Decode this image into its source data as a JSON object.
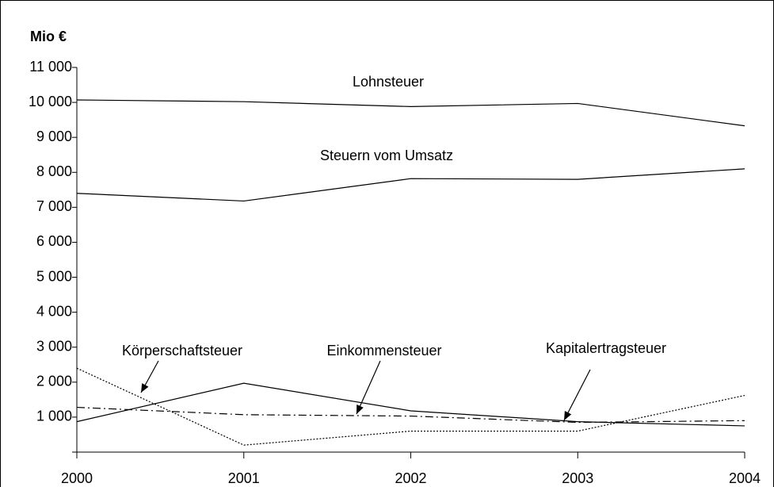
{
  "chart_data": {
    "type": "line",
    "title": "Mio €",
    "x": [
      2000,
      2001,
      2002,
      2003,
      2004
    ],
    "xlim": [
      2000,
      2004
    ],
    "xticks": [
      2000,
      2001,
      2002,
      2003,
      2004
    ],
    "ylim": [
      0,
      11000
    ],
    "yticks": [
      {
        "value": 1000,
        "label": "1 000"
      },
      {
        "value": 2000,
        "label": "2 000"
      },
      {
        "value": 3000,
        "label": "3 000"
      },
      {
        "value": 4000,
        "label": "4 000"
      },
      {
        "value": 5000,
        "label": "5 000"
      },
      {
        "value": 6000,
        "label": "6 000"
      },
      {
        "value": 7000,
        "label": "7 000"
      },
      {
        "value": 8000,
        "label": "8 000"
      },
      {
        "value": 9000,
        "label": "9 000"
      },
      {
        "value": 10000,
        "label": "10 000"
      },
      {
        "value": 11000,
        "label": "11 000"
      }
    ],
    "grid": false,
    "series": [
      {
        "name": "Lohnsteuer",
        "color": "#000000",
        "style": "solid",
        "values": [
          10070,
          10020,
          9880,
          9970,
          9330
        ]
      },
      {
        "name": "Steuern vom Umsatz",
        "color": "#000000",
        "style": "solid",
        "values": [
          7400,
          7180,
          7820,
          7800,
          8100
        ]
      },
      {
        "name": "Körperschaftsteuer",
        "color": "#000000",
        "style": "dotted",
        "values": [
          2400,
          200,
          600,
          600,
          1620
        ]
      },
      {
        "name": "Einkommensteuer",
        "color": "#000000",
        "style": "solid",
        "values": [
          870,
          1970,
          1180,
          870,
          750
        ]
      },
      {
        "name": "Kapitalertragsteuer",
        "color": "#000000",
        "style": "dashdot",
        "values": [
          1280,
          1070,
          1030,
          850,
          900
        ]
      }
    ]
  }
}
